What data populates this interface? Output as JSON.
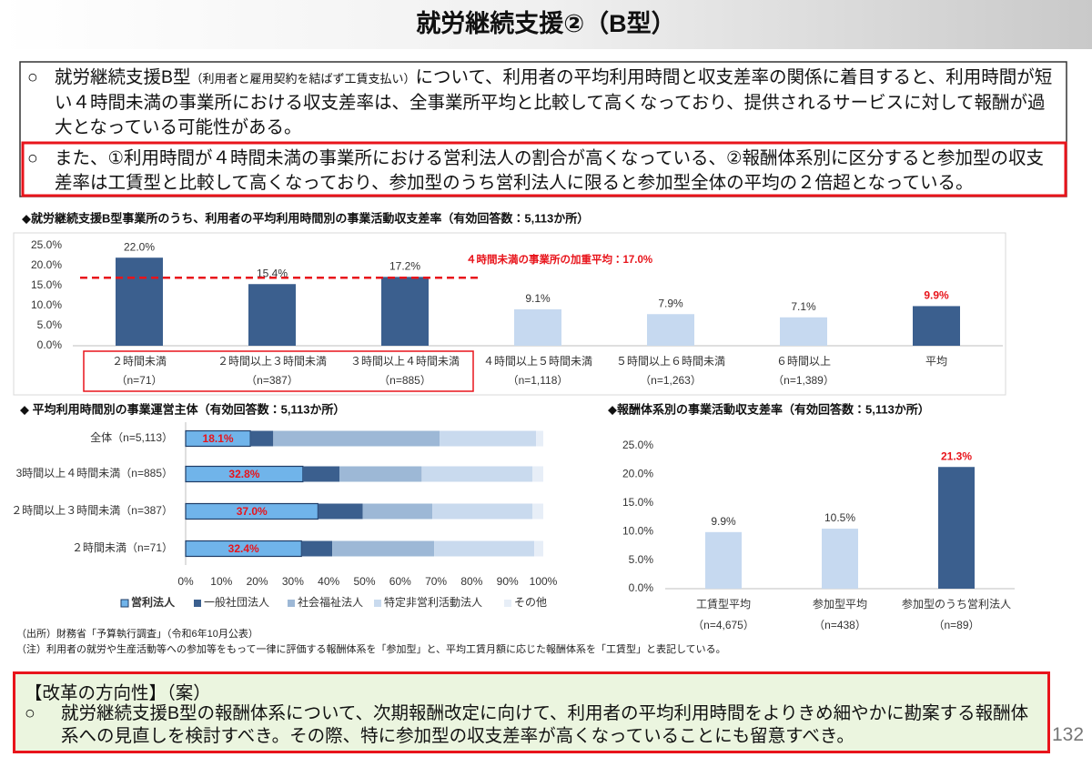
{
  "header": {
    "title": "就労継続支援②（B型）"
  },
  "summary": {
    "items": [
      {
        "marker": "○",
        "lead": "就労継続支援B型",
        "note": "（利用者と雇用契約を結ばず工賃支払い）",
        "text": "について、利用者の平均利用時間と収支差率の関係に着目すると、利用時間が短い４時間未満の事業所における収支差率は、全事業所平均と比較して高くなっており、提供されるサービスに対して報酬が過大となっている可能性がある。"
      },
      {
        "marker": "○",
        "text": "また、①利用時間が４時間未満の事業所における営利法人の割合が高くなっている、②報酬体系別に区分すると参加型の収支差率は工賃型と比較して高くなっており、参加型のうち営利法人に限ると参加型全体の平均の２倍超となっている。"
      }
    ]
  },
  "chart_data": [
    {
      "type": "bar",
      "title": "◆就労継続支援B型事業所のうち、利用者の平均利用時間別の事業活動収支差率（有効回答数：5,113か所）",
      "categories": [
        "２時間未満",
        "２時間以上３時間未満",
        "３時間以上４時間未満",
        "４時間以上５時間未満",
        "５時間以上６時間未満",
        "６時間以上",
        "平均"
      ],
      "category_notes": [
        "（n=71）",
        "（n=387）",
        "（n=885）",
        "（n=1,118）",
        "（n=1,263）",
        "（n=1,389）",
        null
      ],
      "values": [
        22.0,
        15.4,
        17.2,
        9.1,
        7.9,
        7.1,
        9.9
      ],
      "value_labels": [
        "22.0%",
        "15.4%",
        "17.2%",
        "9.1%",
        "7.9%",
        "7.1%",
        "9.9%"
      ],
      "colors": [
        "#3b5f8e",
        "#3b5f8e",
        "#3b5f8e",
        "#c6d9f0",
        "#c6d9f0",
        "#c6d9f0",
        "#3b5f8e"
      ],
      "value_label_colors": [
        "#333333",
        "#333333",
        "#333333",
        "#333333",
        "#333333",
        "#333333",
        "#e8141b"
      ],
      "ylim": [
        0,
        25
      ],
      "yticks": [
        {
          "value": 0,
          "label": "0.0%"
        },
        {
          "value": 5,
          "label": "5.0%"
        },
        {
          "value": 10,
          "label": "10.0%"
        },
        {
          "value": 15,
          "label": "15.0%"
        },
        {
          "value": 20,
          "label": "20.0%"
        },
        {
          "value": 25,
          "label": "25.0%"
        }
      ],
      "reference_line": {
        "value": 17.0,
        "label": "４時間未満の事業所の加重平均：17.0%",
        "color": "#e8141b"
      }
    },
    {
      "type": "stacked_barh",
      "title": "◆ 平均利用時間別の事業運営主体（有効回答数：5,113か所）",
      "categories": [
        "全体（n=5,113）",
        "3時間以上４時間未満（n=885）",
        "２時間以上３時間未満（n=387）",
        "２時間未満（n=71）"
      ],
      "series": [
        {
          "name": "営利法人",
          "color": "#70b4ea",
          "values": [
            18.1,
            32.8,
            37.0,
            32.4
          ],
          "value_labels": [
            "18.1%",
            "32.8%",
            "37.0%",
            "32.4%"
          ],
          "value_label_color": "#e8141b"
        },
        {
          "name": "一般社団法人",
          "color": "#3b5f8e",
          "values": [
            6.4,
            10.2,
            12.5,
            8.6
          ]
        },
        {
          "name": "社会福祉法人",
          "color": "#9db8d6",
          "values": [
            46.5,
            23.0,
            19.5,
            28.5
          ]
        },
        {
          "name": "特定非営利活動法人",
          "color": "#c9daee",
          "values": [
            27.0,
            31.0,
            28.0,
            28.0
          ]
        },
        {
          "name": "その他",
          "color": "#e7eef7",
          "values": [
            2.0,
            3.0,
            3.0,
            2.5
          ]
        }
      ],
      "xlim": [
        0,
        100
      ],
      "xticks": [
        {
          "value": 0,
          "label": "0%"
        },
        {
          "value": 10,
          "label": "10%"
        },
        {
          "value": 20,
          "label": "20%"
        },
        {
          "value": 30,
          "label": "30%"
        },
        {
          "value": 40,
          "label": "40%"
        },
        {
          "value": 50,
          "label": "50%"
        },
        {
          "value": 60,
          "label": "60%"
        },
        {
          "value": 70,
          "label": "70%"
        },
        {
          "value": 80,
          "label": "80%"
        },
        {
          "value": 90,
          "label": "90%"
        },
        {
          "value": 100,
          "label": "100%"
        }
      ]
    },
    {
      "type": "bar",
      "title": "◆報酬体系別の事業活動収支差率（有効回答数：5,113か所）",
      "categories": [
        "工賃型平均",
        "参加型平均",
        "参加型のうち営利法人"
      ],
      "category_notes": [
        "（n=4,675）",
        "（n=438）",
        "（n=89）"
      ],
      "values": [
        9.9,
        10.5,
        21.3
      ],
      "value_labels": [
        "9.9%",
        "10.5%",
        "21.3%"
      ],
      "colors": [
        "#c6d9f0",
        "#c6d9f0",
        "#3b5f8e"
      ],
      "value_label_colors": [
        "#333333",
        "#333333",
        "#e8141b"
      ],
      "ylim": [
        0,
        25
      ],
      "yticks": [
        {
          "value": 0,
          "label": "0.0%"
        },
        {
          "value": 5,
          "label": "5.0%"
        },
        {
          "value": 10,
          "label": "10.0%"
        },
        {
          "value": 15,
          "label": "15.0%"
        },
        {
          "value": 20,
          "label": "20.0%"
        },
        {
          "value": 25,
          "label": "25.0%"
        }
      ]
    }
  ],
  "footnotes": {
    "source": "（出所）財務省「予算執行調査」（令和6年10月公表）",
    "note": "（注）利用者の就労や生産活動等への参加等をもって一律に評価する報酬体系を「参加型」と、平均工賃月額に応じた報酬体系を「工賃型」と表記している。"
  },
  "reform": {
    "title": "【改革の方向性】（案）",
    "marker": "○",
    "text": "就労継続支援B型の報酬体系について、次期報酬改定に向けて、利用者の平均利用時間をよりきめ細やかに勘案する報酬体系への見直しを検討すべき。その際、特に参加型の収支差率が高くなっていることにも留意すべき。"
  },
  "page_number": "132"
}
